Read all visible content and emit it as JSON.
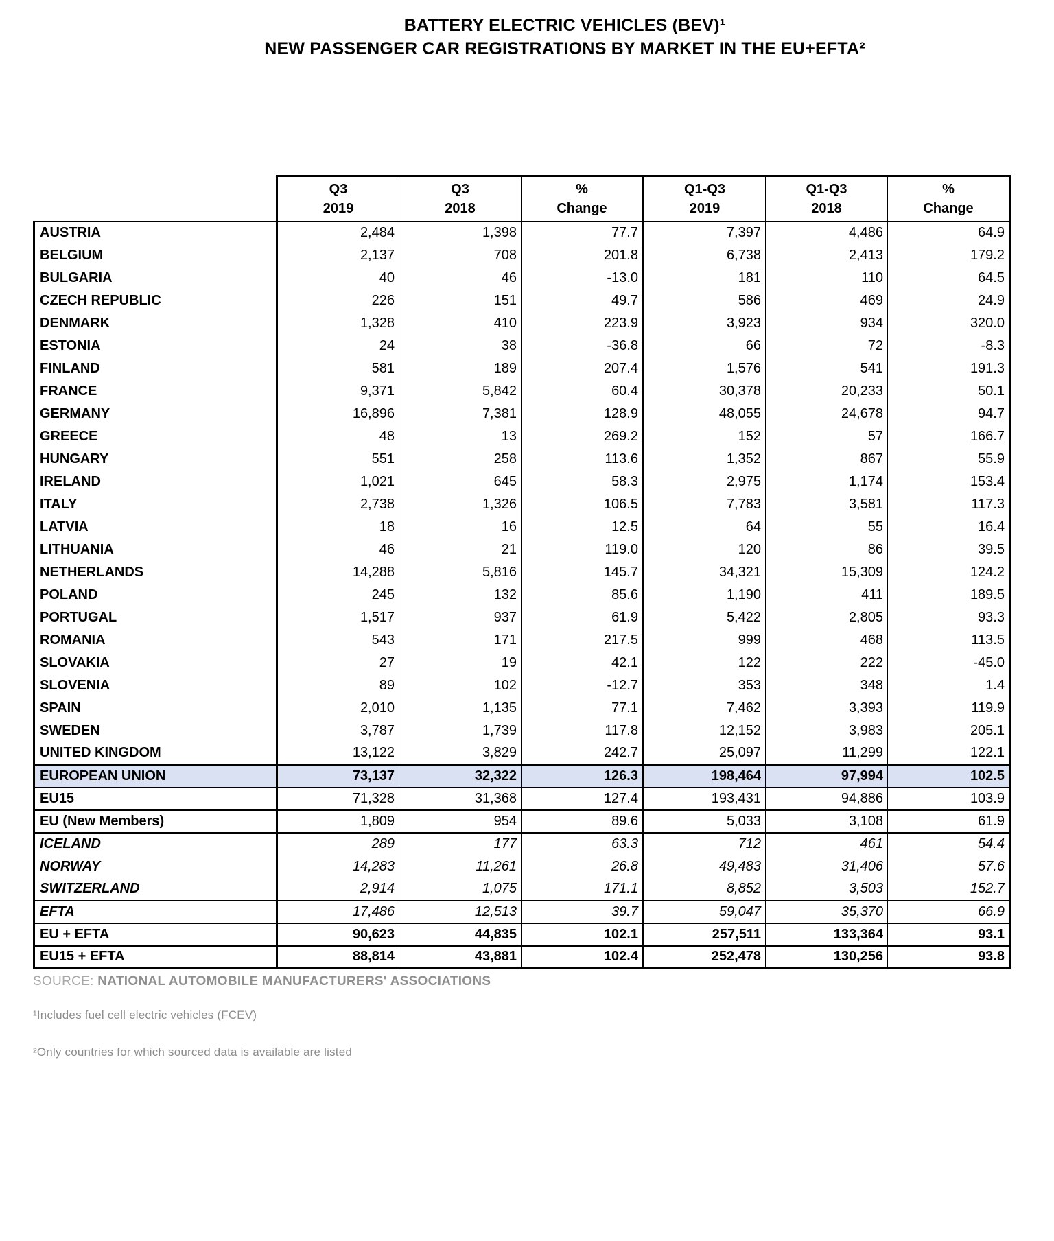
{
  "title": {
    "line1": "BATTERY ELECTRIC VEHICLES (BEV)¹",
    "line2": "NEW PASSENGER CAR REGISTRATIONS BY MARKET IN THE EU+EFTA²"
  },
  "table": {
    "headers": [
      {
        "line1": "Q3",
        "line2": "2019"
      },
      {
        "line1": "Q3",
        "line2": "2018"
      },
      {
        "line1": "%",
        "line2": "Change"
      },
      {
        "line1": "Q1-Q3",
        "line2": "2019"
      },
      {
        "line1": "Q1-Q3",
        "line2": "2018"
      },
      {
        "line1": "%",
        "line2": "Change"
      }
    ],
    "rows": [
      {
        "label": "AUSTRIA",
        "values": [
          "2,484",
          "1,398",
          "77.7",
          "7,397",
          "4,486",
          "64.9"
        ],
        "style": "country"
      },
      {
        "label": "BELGIUM",
        "values": [
          "2,137",
          "708",
          "201.8",
          "6,738",
          "2,413",
          "179.2"
        ],
        "style": "country"
      },
      {
        "label": "BULGARIA",
        "values": [
          "40",
          "46",
          "-13.0",
          "181",
          "110",
          "64.5"
        ],
        "style": "country"
      },
      {
        "label": "CZECH REPUBLIC",
        "values": [
          "226",
          "151",
          "49.7",
          "586",
          "469",
          "24.9"
        ],
        "style": "country"
      },
      {
        "label": "DENMARK",
        "values": [
          "1,328",
          "410",
          "223.9",
          "3,923",
          "934",
          "320.0"
        ],
        "style": "country"
      },
      {
        "label": "ESTONIA",
        "values": [
          "24",
          "38",
          "-36.8",
          "66",
          "72",
          "-8.3"
        ],
        "style": "country"
      },
      {
        "label": "FINLAND",
        "values": [
          "581",
          "189",
          "207.4",
          "1,576",
          "541",
          "191.3"
        ],
        "style": "country"
      },
      {
        "label": "FRANCE",
        "values": [
          "9,371",
          "5,842",
          "60.4",
          "30,378",
          "20,233",
          "50.1"
        ],
        "style": "country"
      },
      {
        "label": "GERMANY",
        "values": [
          "16,896",
          "7,381",
          "128.9",
          "48,055",
          "24,678",
          "94.7"
        ],
        "style": "country"
      },
      {
        "label": "GREECE",
        "values": [
          "48",
          "13",
          "269.2",
          "152",
          "57",
          "166.7"
        ],
        "style": "country"
      },
      {
        "label": "HUNGARY",
        "values": [
          "551",
          "258",
          "113.6",
          "1,352",
          "867",
          "55.9"
        ],
        "style": "country"
      },
      {
        "label": "IRELAND",
        "values": [
          "1,021",
          "645",
          "58.3",
          "2,975",
          "1,174",
          "153.4"
        ],
        "style": "country"
      },
      {
        "label": "ITALY",
        "values": [
          "2,738",
          "1,326",
          "106.5",
          "7,783",
          "3,581",
          "117.3"
        ],
        "style": "country"
      },
      {
        "label": "LATVIA",
        "values": [
          "18",
          "16",
          "12.5",
          "64",
          "55",
          "16.4"
        ],
        "style": "country"
      },
      {
        "label": "LITHUANIA",
        "values": [
          "46",
          "21",
          "119.0",
          "120",
          "86",
          "39.5"
        ],
        "style": "country"
      },
      {
        "label": "NETHERLANDS",
        "values": [
          "14,288",
          "5,816",
          "145.7",
          "34,321",
          "15,309",
          "124.2"
        ],
        "style": "country"
      },
      {
        "label": "POLAND",
        "values": [
          "245",
          "132",
          "85.6",
          "1,190",
          "411",
          "189.5"
        ],
        "style": "country"
      },
      {
        "label": "PORTUGAL",
        "values": [
          "1,517",
          "937",
          "61.9",
          "5,422",
          "2,805",
          "93.3"
        ],
        "style": "country"
      },
      {
        "label": "ROMANIA",
        "values": [
          "543",
          "171",
          "217.5",
          "999",
          "468",
          "113.5"
        ],
        "style": "country"
      },
      {
        "label": "SLOVAKIA",
        "values": [
          "27",
          "19",
          "42.1",
          "122",
          "222",
          "-45.0"
        ],
        "style": "country"
      },
      {
        "label": "SLOVENIA",
        "values": [
          "89",
          "102",
          "-12.7",
          "353",
          "348",
          "1.4"
        ],
        "style": "country"
      },
      {
        "label": "SPAIN",
        "values": [
          "2,010",
          "1,135",
          "77.1",
          "7,462",
          "3,393",
          "119.9"
        ],
        "style": "country"
      },
      {
        "label": "SWEDEN",
        "values": [
          "3,787",
          "1,739",
          "117.8",
          "12,152",
          "3,983",
          "205.1"
        ],
        "style": "country"
      },
      {
        "label": "UNITED KINGDOM",
        "values": [
          "13,122",
          "3,829",
          "242.7",
          "25,097",
          "11,299",
          "122.1"
        ],
        "style": "country"
      },
      {
        "label": "EUROPEAN UNION",
        "values": [
          "73,137",
          "32,322",
          "126.3",
          "198,464",
          "97,994",
          "102.5"
        ],
        "style": "eu"
      },
      {
        "label": "EU15",
        "values": [
          "71,328",
          "31,368",
          "127.4",
          "193,431",
          "94,886",
          "103.9"
        ],
        "style": "boxed"
      },
      {
        "label": "EU (New Members)",
        "values": [
          "1,809",
          "954",
          "89.6",
          "5,033",
          "3,108",
          "61.9"
        ],
        "style": "boxed"
      },
      {
        "label": "ICELAND",
        "values": [
          "289",
          "177",
          "63.3",
          "712",
          "461",
          "54.4"
        ],
        "style": "efta-first"
      },
      {
        "label": "NORWAY",
        "values": [
          "14,283",
          "11,261",
          "26.8",
          "49,483",
          "31,406",
          "57.6"
        ],
        "style": "efta-mid"
      },
      {
        "label": "SWITZERLAND",
        "values": [
          "2,914",
          "1,075",
          "171.1",
          "8,852",
          "3,503",
          "152.7"
        ],
        "style": "efta-last"
      },
      {
        "label": "EFTA",
        "values": [
          "17,486",
          "12,513",
          "39.7",
          "59,047",
          "35,370",
          "66.9"
        ],
        "style": "efta-total"
      },
      {
        "label": "EU + EFTA",
        "values": [
          "90,623",
          "44,835",
          "102.1",
          "257,511",
          "133,364",
          "93.1"
        ],
        "style": "grand"
      },
      {
        "label": "EU15 + EFTA",
        "values": [
          "88,814",
          "43,881",
          "102.4",
          "252,478",
          "130,256",
          "93.8"
        ],
        "style": "grand"
      }
    ]
  },
  "footer": {
    "source_prefix": "SOURCE: ",
    "source_name": "NATIONAL AUTOMOBILE MANUFACTURERS' ASSOCIATIONS",
    "footnote1": "¹Includes fuel cell electric vehicles (FCEV)",
    "footnote2": "²Only countries for which sourced data is available are listed"
  },
  "colors": {
    "highlight_row_bg": "#d9e1f2",
    "border": "#000000",
    "footer_text": "#8c8c8c"
  }
}
